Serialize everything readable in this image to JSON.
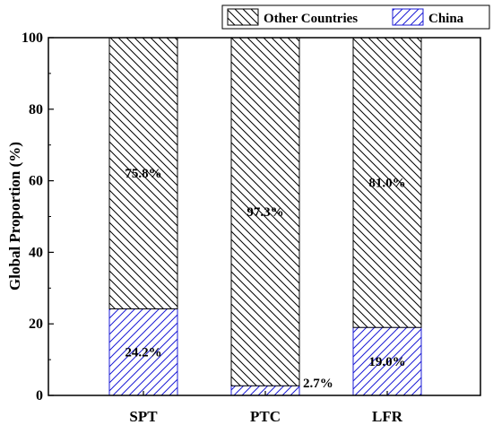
{
  "chart_data": {
    "type": "bar",
    "stacked": true,
    "categories": [
      "SPT",
      "PTC",
      "LFR"
    ],
    "series": [
      {
        "name": "China",
        "values": [
          24.2,
          2.7,
          19.0
        ],
        "labels": [
          "24.2%",
          "2.7%",
          "19.0%"
        ],
        "color": "#1c1cd6",
        "pattern": "forward-diagonal-hatch"
      },
      {
        "name": "Other Countries",
        "values": [
          75.8,
          97.3,
          81.0
        ],
        "labels": [
          "75.8%",
          "97.3%",
          "81.0%"
        ],
        "color": "#000000",
        "pattern": "back-diagonal-hatch"
      }
    ],
    "title": "",
    "xlabel": "",
    "ylabel": "Global Proportion (%)",
    "ylim": [
      0,
      100
    ],
    "yticks": [
      0,
      20,
      40,
      60,
      80,
      100
    ],
    "yticklabels": [
      "0",
      "20",
      "40",
      "60",
      "80",
      "100"
    ],
    "grid": false,
    "legend": {
      "placement": "top-right",
      "order": [
        "Other Countries",
        "China"
      ]
    }
  }
}
